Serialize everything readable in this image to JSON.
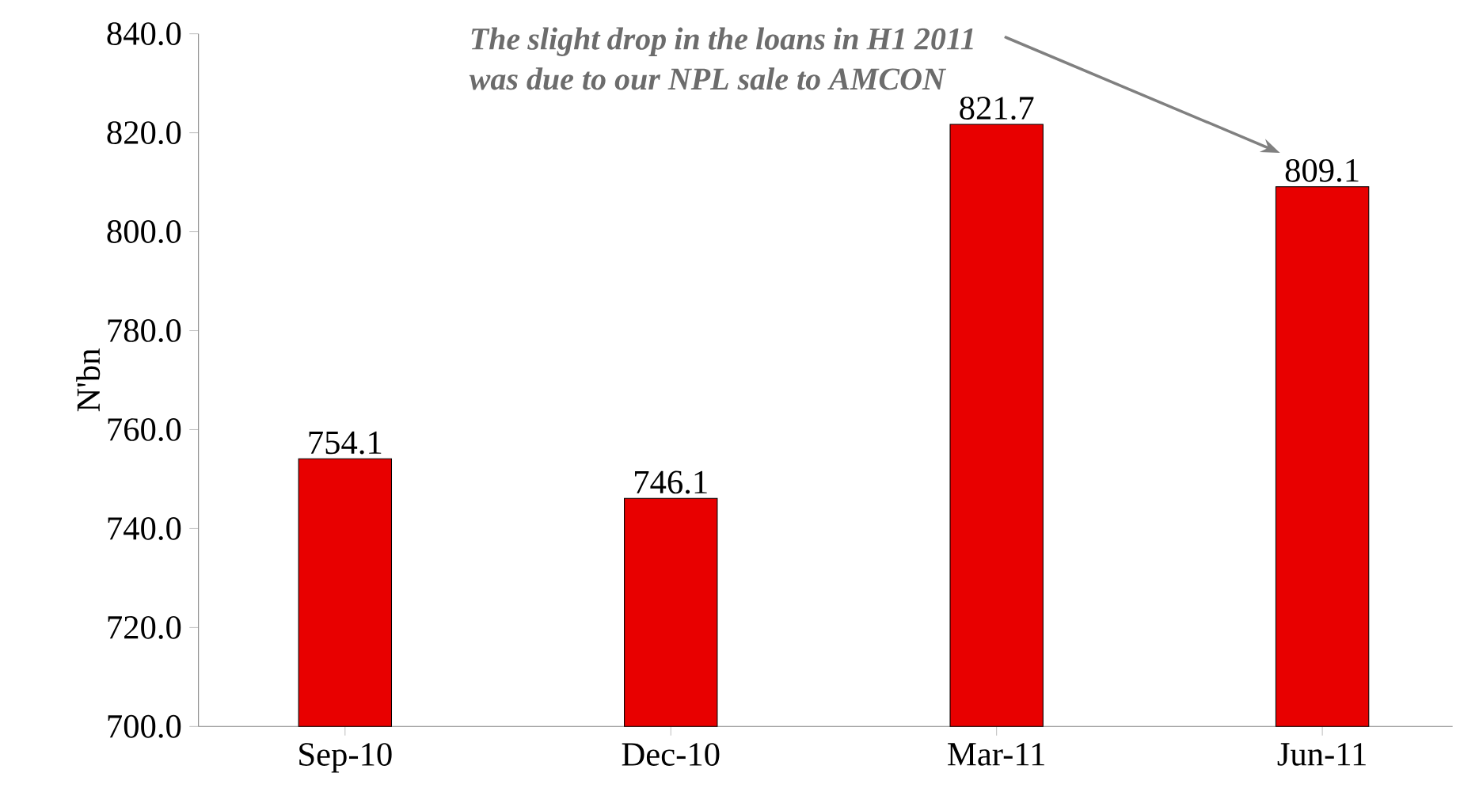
{
  "chart_data": {
    "type": "bar",
    "ylabel": "N'bn",
    "categories": [
      "Sep-10",
      "Dec-10",
      "Mar-11",
      "Jun-11"
    ],
    "values": [
      754.1,
      746.1,
      821.7,
      809.1
    ],
    "color": "#e80000",
    "ylim": [
      700,
      840
    ],
    "yticks": [
      {
        "value": 700,
        "label": "700.0"
      },
      {
        "value": 720,
        "label": "720.0"
      },
      {
        "value": 740,
        "label": "740.0"
      },
      {
        "value": 760,
        "label": "760.0"
      },
      {
        "value": 780,
        "label": "780.0"
      },
      {
        "value": 800,
        "label": "800.0"
      },
      {
        "value": 820,
        "label": "820.0"
      },
      {
        "value": 840,
        "label": "840.0"
      }
    ],
    "data_labels": true,
    "grid": false,
    "annotations": [
      "The slight drop in the loans in H1 2011 was due to our NPL sale to AMCON"
    ]
  }
}
